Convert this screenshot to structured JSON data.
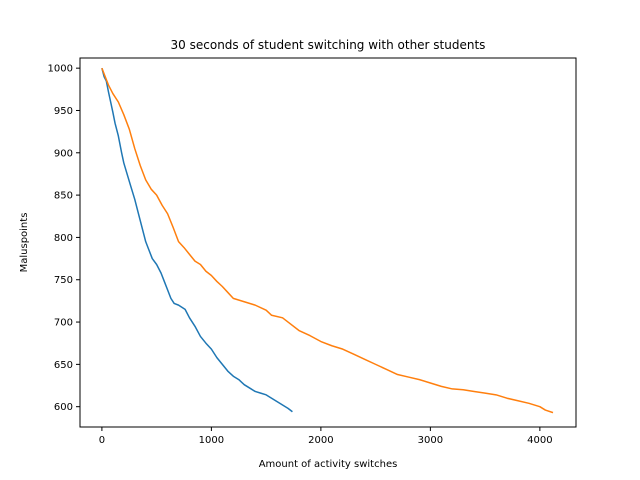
{
  "chart_data": {
    "type": "line",
    "title": "30 seconds of student switching with other students",
    "xlabel": "Amount of activity switches",
    "ylabel": "Maluspoints",
    "xlim": [
      -200,
      4330
    ],
    "ylim": [
      576,
      1012
    ],
    "xticks": [
      0,
      1000,
      2000,
      3000,
      4000
    ],
    "yticks": [
      600,
      650,
      700,
      750,
      800,
      850,
      900,
      950,
      1000
    ],
    "grid": false,
    "legend": "none",
    "series": [
      {
        "color": "#1f77b4",
        "points": [
          [
            0,
            1000
          ],
          [
            20,
            990
          ],
          [
            40,
            985
          ],
          [
            60,
            972
          ],
          [
            80,
            960
          ],
          [
            100,
            948
          ],
          [
            120,
            935
          ],
          [
            150,
            920
          ],
          [
            180,
            900
          ],
          [
            200,
            888
          ],
          [
            230,
            875
          ],
          [
            260,
            862
          ],
          [
            300,
            845
          ],
          [
            340,
            825
          ],
          [
            380,
            805
          ],
          [
            400,
            795
          ],
          [
            430,
            785
          ],
          [
            460,
            775
          ],
          [
            500,
            768
          ],
          [
            540,
            758
          ],
          [
            570,
            748
          ],
          [
            600,
            738
          ],
          [
            630,
            728
          ],
          [
            660,
            722
          ],
          [
            700,
            720
          ],
          [
            760,
            715
          ],
          [
            800,
            705
          ],
          [
            850,
            695
          ],
          [
            900,
            683
          ],
          [
            950,
            675
          ],
          [
            1000,
            668
          ],
          [
            1050,
            658
          ],
          [
            1100,
            650
          ],
          [
            1150,
            642
          ],
          [
            1200,
            636
          ],
          [
            1250,
            632
          ],
          [
            1300,
            626
          ],
          [
            1350,
            622
          ],
          [
            1400,
            618
          ],
          [
            1450,
            616
          ],
          [
            1500,
            614
          ],
          [
            1550,
            610
          ],
          [
            1600,
            606
          ],
          [
            1650,
            602
          ],
          [
            1700,
            598
          ],
          [
            1740,
            594
          ]
        ]
      },
      {
        "color": "#ff7f0e",
        "points": [
          [
            0,
            1000
          ],
          [
            30,
            990
          ],
          [
            60,
            980
          ],
          [
            100,
            970
          ],
          [
            150,
            960
          ],
          [
            200,
            945
          ],
          [
            250,
            928
          ],
          [
            300,
            905
          ],
          [
            350,
            885
          ],
          [
            400,
            868
          ],
          [
            450,
            857
          ],
          [
            500,
            850
          ],
          [
            550,
            838
          ],
          [
            600,
            828
          ],
          [
            650,
            812
          ],
          [
            700,
            795
          ],
          [
            750,
            788
          ],
          [
            800,
            780
          ],
          [
            850,
            772
          ],
          [
            900,
            768
          ],
          [
            950,
            760
          ],
          [
            1000,
            755
          ],
          [
            1050,
            748
          ],
          [
            1100,
            742
          ],
          [
            1150,
            735
          ],
          [
            1200,
            728
          ],
          [
            1300,
            724
          ],
          [
            1400,
            720
          ],
          [
            1500,
            714
          ],
          [
            1550,
            708
          ],
          [
            1650,
            705
          ],
          [
            1700,
            700
          ],
          [
            1800,
            690
          ],
          [
            1900,
            684
          ],
          [
            2000,
            677
          ],
          [
            2100,
            672
          ],
          [
            2200,
            668
          ],
          [
            2300,
            662
          ],
          [
            2400,
            656
          ],
          [
            2500,
            650
          ],
          [
            2600,
            644
          ],
          [
            2700,
            638
          ],
          [
            2800,
            635
          ],
          [
            2900,
            632
          ],
          [
            3000,
            628
          ],
          [
            3100,
            624
          ],
          [
            3200,
            621
          ],
          [
            3300,
            620
          ],
          [
            3400,
            618
          ],
          [
            3500,
            616
          ],
          [
            3600,
            614
          ],
          [
            3700,
            610
          ],
          [
            3800,
            607
          ],
          [
            3900,
            604
          ],
          [
            4000,
            600
          ],
          [
            4050,
            596
          ],
          [
            4120,
            593
          ]
        ]
      }
    ]
  }
}
